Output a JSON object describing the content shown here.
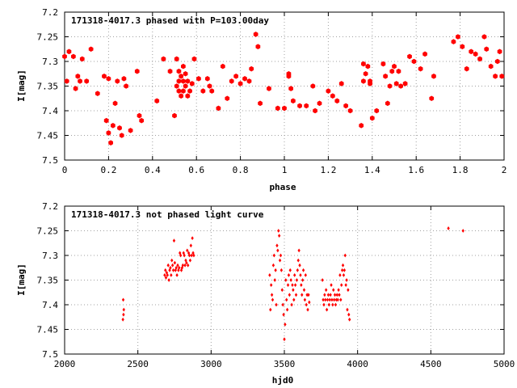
{
  "chart_data": [
    {
      "type": "scatter",
      "title": "171318-4017.3 phased with P=103.00day",
      "xlabel": "phase",
      "ylabel": "I[mag]",
      "xlim": [
        0,
        2
      ],
      "ylim": [
        7.5,
        7.2
      ],
      "y_inverted": true,
      "xticks": [
        "0",
        "0.2",
        "0.4",
        "0.6",
        "0.8",
        "1",
        "1.2",
        "1.4",
        "1.6",
        "1.8",
        "2"
      ],
      "yticks": [
        "7.2",
        "7.25",
        "7.3",
        "7.35",
        "7.4",
        "7.45",
        "7.5"
      ],
      "grid": true,
      "marker_color": "#ff0000",
      "marker": "filled-hexagon",
      "series": [
        {
          "x": [
            0.0,
            0.01,
            0.02,
            0.04,
            0.05,
            0.06,
            0.07,
            0.08,
            0.1,
            0.12,
            0.15,
            0.18,
            0.19,
            0.2,
            0.2,
            0.21,
            0.22,
            0.23,
            0.24,
            0.25,
            0.26,
            0.27,
            0.28,
            0.3,
            0.33,
            0.34,
            0.35,
            0.42,
            0.45,
            0.48,
            0.5,
            0.51,
            0.51,
            0.52,
            0.52,
            0.52,
            0.53,
            0.53,
            0.54,
            0.54,
            0.54,
            0.55,
            0.55,
            0.56,
            0.56,
            0.57,
            0.58,
            0.59,
            0.61,
            0.63,
            0.65,
            0.66,
            0.67,
            0.7,
            0.72,
            0.74,
            0.76,
            0.78,
            0.8,
            0.82,
            0.84,
            0.85,
            0.87,
            0.88,
            0.89,
            0.93,
            0.97,
            1.0,
            1.02,
            1.02,
            1.03,
            1.04,
            1.07,
            1.1,
            1.13,
            1.14,
            1.16,
            1.2,
            1.22,
            1.24,
            1.26,
            1.28,
            1.3,
            1.35,
            1.36,
            1.36,
            1.37,
            1.38,
            1.39,
            1.39,
            1.4,
            1.42,
            1.45,
            1.46,
            1.47,
            1.48,
            1.49,
            1.5,
            1.51,
            1.52,
            1.53,
            1.55,
            1.57,
            1.59,
            1.62,
            1.64,
            1.67,
            1.68,
            1.77,
            1.79,
            1.81,
            1.83,
            1.85,
            1.87,
            1.89,
            1.91,
            1.92,
            1.94,
            1.96,
            1.97,
            1.98,
            1.99
          ],
          "y": [
            7.29,
            7.34,
            7.28,
            7.29,
            7.355,
            7.33,
            7.34,
            7.295,
            7.34,
            7.275,
            7.365,
            7.33,
            7.42,
            7.445,
            7.335,
            7.465,
            7.43,
            7.385,
            7.34,
            7.435,
            7.45,
            7.335,
            7.35,
            7.44,
            7.32,
            7.41,
            7.42,
            7.38,
            7.295,
            7.32,
            7.41,
            7.35,
            7.295,
            7.32,
            7.34,
            7.36,
            7.33,
            7.37,
            7.31,
            7.34,
            7.36,
            7.325,
            7.35,
            7.34,
            7.37,
            7.36,
            7.345,
            7.295,
            7.335,
            7.36,
            7.335,
            7.35,
            7.36,
            7.395,
            7.31,
            7.375,
            7.34,
            7.33,
            7.345,
            7.335,
            7.34,
            7.315,
            7.245,
            7.27,
            7.385,
            7.355,
            7.395,
            7.395,
            7.325,
            7.33,
            7.355,
            7.38,
            7.39,
            7.39,
            7.35,
            7.4,
            7.385,
            7.36,
            7.37,
            7.38,
            7.345,
            7.39,
            7.4,
            7.43,
            7.305,
            7.34,
            7.325,
            7.31,
            7.345,
            7.34,
            7.415,
            7.4,
            7.305,
            7.33,
            7.385,
            7.35,
            7.32,
            7.31,
            7.345,
            7.32,
            7.35,
            7.345,
            7.29,
            7.3,
            7.315,
            7.285,
            7.375,
            7.33,
            7.26,
            7.25,
            7.27,
            7.315,
            7.28,
            7.285,
            7.295,
            7.25,
            7.275,
            7.31,
            7.33,
            7.3,
            7.28,
            7.33
          ]
        }
      ]
    },
    {
      "type": "scatter",
      "title": "171318-4017.3 not phased light curve",
      "xlabel": "hjd0",
      "ylabel": "I[mag]",
      "xlim": [
        2000,
        5000
      ],
      "ylim": [
        7.5,
        7.2
      ],
      "y_inverted": true,
      "xticks": [
        "2000",
        "2500",
        "3000",
        "3500",
        "4000",
        "4500",
        "5000"
      ],
      "yticks": [
        "7.2",
        "7.25",
        "7.3",
        "7.35",
        "7.4",
        "7.45",
        "7.5"
      ],
      "grid": true,
      "marker_color": "#ff0000",
      "marker": "small-diamond",
      "series": [
        {
          "x": [
            2398,
            2400,
            2402,
            2404,
            2683,
            2688,
            2692,
            2697,
            2702,
            2707,
            2712,
            2717,
            2722,
            2727,
            2732,
            2737,
            2742,
            2747,
            2752,
            2757,
            2762,
            2767,
            2772,
            2777,
            2782,
            2787,
            2792,
            2797,
            2802,
            2807,
            2812,
            2817,
            2822,
            2827,
            2832,
            2837,
            2842,
            2847,
            2852,
            2857,
            2862,
            2867,
            2872,
            2877,
            2882,
            3400,
            3405,
            3410,
            3415,
            3420,
            3425,
            3430,
            3435,
            3440,
            3445,
            3450,
            3455,
            3460,
            3465,
            3470,
            3475,
            3480,
            3485,
            3490,
            3495,
            3500,
            3505,
            3510,
            3515,
            3520,
            3525,
            3530,
            3535,
            3540,
            3545,
            3550,
            3555,
            3560,
            3565,
            3570,
            3575,
            3580,
            3585,
            3590,
            3595,
            3600,
            3605,
            3610,
            3615,
            3620,
            3625,
            3630,
            3635,
            3640,
            3645,
            3650,
            3655,
            3660,
            3665,
            3670,
            3760,
            3765,
            3770,
            3775,
            3780,
            3785,
            3790,
            3795,
            3800,
            3805,
            3810,
            3815,
            3820,
            3825,
            3830,
            3835,
            3840,
            3845,
            3850,
            3855,
            3860,
            3865,
            3870,
            3875,
            3880,
            3885,
            3890,
            3895,
            3900,
            3905,
            3910,
            3915,
            3920,
            3925,
            3930,
            3935,
            3940,
            3945,
            4620,
            4720
          ],
          "y": [
            7.43,
            7.39,
            7.42,
            7.41,
            7.34,
            7.33,
            7.345,
            7.335,
            7.34,
            7.32,
            7.35,
            7.33,
            7.325,
            7.34,
            7.31,
            7.32,
            7.33,
            7.27,
            7.315,
            7.33,
            7.325,
            7.34,
            7.32,
            7.33,
            7.325,
            7.295,
            7.3,
            7.33,
            7.325,
            7.32,
            7.295,
            7.3,
            7.32,
            7.31,
            7.315,
            7.29,
            7.32,
            7.295,
            7.3,
            7.31,
            7.28,
            7.3,
            7.265,
            7.295,
            7.3,
            7.34,
            7.41,
            7.36,
            7.38,
            7.39,
            7.32,
            7.3,
            7.35,
            7.33,
            7.4,
            7.28,
            7.29,
            7.25,
            7.26,
            7.31,
            7.3,
            7.33,
            7.37,
            7.4,
            7.42,
            7.47,
            7.44,
            7.35,
            7.39,
            7.41,
            7.36,
            7.34,
            7.38,
            7.33,
            7.35,
            7.4,
            7.36,
            7.37,
            7.39,
            7.34,
            7.36,
            7.38,
            7.35,
            7.33,
            7.31,
            7.29,
            7.32,
            7.34,
            7.36,
            7.38,
            7.35,
            7.33,
            7.37,
            7.39,
            7.34,
            7.4,
            7.38,
            7.41,
            7.38,
            7.395,
            7.35,
            7.39,
            7.4,
            7.38,
            7.39,
            7.37,
            7.41,
            7.39,
            7.38,
            7.4,
            7.39,
            7.38,
            7.36,
            7.39,
            7.4,
            7.37,
            7.39,
            7.38,
            7.4,
            7.39,
            7.38,
            7.39,
            7.37,
            7.38,
            7.34,
            7.39,
            7.36,
            7.33,
            7.32,
            7.34,
            7.33,
            7.3,
            7.36,
            7.35,
            7.41,
            7.37,
            7.42,
            7.43,
            7.245,
            7.25
          ]
        }
      ]
    }
  ]
}
